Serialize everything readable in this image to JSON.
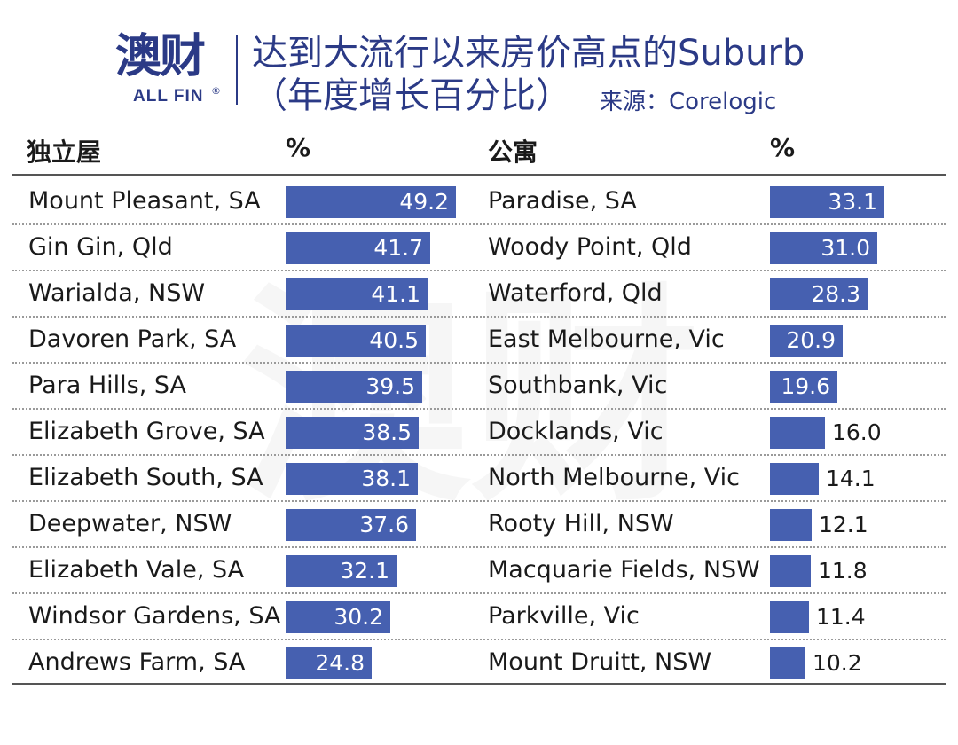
{
  "logo": {
    "cn": "澳财",
    "en": "ALL FIN",
    "reg": "®"
  },
  "title": {
    "line1": "达到大流行以来房价高点的Suburb",
    "line2": "（年度增长百分比）",
    "source": "来源：Corelogic"
  },
  "chart_data": {
    "type": "bar",
    "title": "达到大流行以来房价高点的Suburb（年度增长百分比）",
    "groups": [
      {
        "name": "独立屋",
        "unit_header": "%",
        "categories": [
          "Mount Pleasant, SA",
          "Gin Gin, Qld",
          "Warialda, NSW",
          "Davoren Park, SA",
          "Para Hills, SA",
          "Elizabeth Grove, SA",
          "Elizabeth South, SA",
          "Deepwater, NSW",
          "Elizabeth Vale, SA",
          "Windsor Gardens, SA",
          "Andrews Farm, SA"
        ],
        "values": [
          49.2,
          41.7,
          41.1,
          40.5,
          39.5,
          38.5,
          38.1,
          37.6,
          32.1,
          30.2,
          24.8
        ],
        "value_labels": [
          "49.2",
          "41.7",
          "41.1",
          "40.5",
          "39.5",
          "38.5",
          "38.1",
          "37.6",
          "32.1",
          "30.2",
          "24.8"
        ]
      },
      {
        "name": "公寓",
        "unit_header": "%",
        "categories": [
          "Paradise, SA",
          "Woody Point, Qld",
          "Waterford, Qld",
          "East Melbourne, Vic",
          "Southbank, Vic",
          "Docklands, Vic",
          "North Melbourne, Vic",
          "Rooty Hill, NSW",
          "Macquarie Fields, NSW",
          "Parkville, Vic",
          "Mount Druitt, NSW"
        ],
        "values": [
          33.1,
          31.0,
          28.3,
          20.9,
          19.6,
          16.0,
          14.1,
          12.1,
          11.8,
          11.4,
          10.2
        ],
        "value_labels": [
          "33.1",
          "31.0",
          "28.3",
          "20.9",
          "19.6",
          "16.0",
          "14.1",
          "12.1",
          "11.8",
          "11.4",
          "10.2"
        ]
      }
    ],
    "bar_color": "#4660b0",
    "grid": false,
    "legend": "none"
  },
  "colors": {
    "brand": "#2b3a86",
    "bar": "#4660b0"
  }
}
